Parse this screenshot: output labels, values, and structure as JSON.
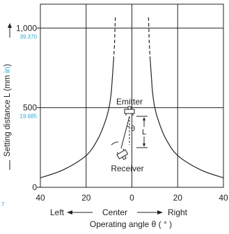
{
  "chart_data": {
    "type": "line",
    "ylabel": {
      "prefix": "Setting distance L (mm ",
      "unit": "in",
      "suffix": ")"
    },
    "x_direction": {
      "left": "Left",
      "center": "Center",
      "right": "Right"
    },
    "xlabel": "Operating angle θ ( ° )",
    "x_ticks": [
      "40",
      "20",
      "0",
      "20",
      "40"
    ],
    "x_tick_values": [
      -40,
      -20,
      0,
      20,
      40
    ],
    "y_ticks": [
      {
        "value": 0,
        "mm": "0",
        "in": ""
      },
      {
        "value": 500,
        "mm": "500",
        "in": "19.685"
      },
      {
        "value": 1000,
        "mm": "1,000",
        "in": "39.370"
      }
    ],
    "xlim": [
      -40,
      40
    ],
    "ylim": [
      0,
      1150
    ],
    "grid": true,
    "series": [
      {
        "side": "right",
        "solid_points": [
          [
            40,
            60
          ],
          [
            30,
            110
          ],
          [
            20,
            200
          ],
          [
            15,
            300
          ],
          [
            12,
            400
          ],
          [
            10,
            500
          ],
          [
            9,
            600
          ],
          [
            8.5,
            700
          ],
          [
            8,
            800
          ]
        ],
        "dashed_points": [
          [
            8,
            800
          ],
          [
            7.6,
            900
          ],
          [
            7.4,
            1000
          ],
          [
            7.2,
            1080
          ]
        ]
      },
      {
        "side": "left",
        "solid_points": [
          [
            -40,
            60
          ],
          [
            -30,
            110
          ],
          [
            -20,
            200
          ],
          [
            -15,
            300
          ],
          [
            -12,
            400
          ],
          [
            -10,
            500
          ],
          [
            -9,
            600
          ],
          [
            -8.5,
            700
          ],
          [
            -8,
            800
          ]
        ],
        "dashed_points": [
          [
            -8,
            800
          ],
          [
            -7.6,
            900
          ],
          [
            -7.4,
            1000
          ],
          [
            -7.2,
            1080
          ]
        ]
      }
    ],
    "inset": {
      "emitter": "Emitter",
      "receiver": "Receiver",
      "theta": "θ",
      "l": "L"
    },
    "corner_note": "7"
  }
}
